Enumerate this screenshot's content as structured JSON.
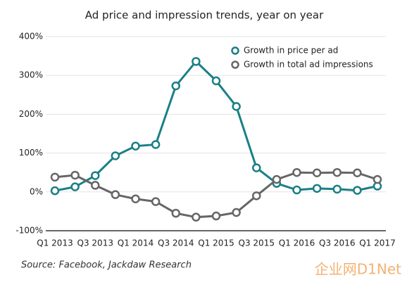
{
  "chart_data": {
    "type": "line",
    "title": "Ad price and impression trends, year on year",
    "categories": [
      "Q1 2013",
      null,
      "Q3 2013",
      null,
      "Q1 2014",
      null,
      "Q3 2014",
      null,
      "Q1 2015",
      null,
      "Q3 2015",
      null,
      "Q1 2016",
      null,
      "Q3 2016",
      null,
      "Q1 2017"
    ],
    "series": [
      {
        "name": "Growth in price per ad",
        "color": "#1a7f86",
        "values": [
          3,
          13,
          42,
          93,
          118,
          122,
          273,
          336,
          286,
          220,
          62,
          22,
          5,
          9,
          7,
          4,
          15
        ]
      },
      {
        "name": "Growth in total ad impressions",
        "color": "#666666",
        "values": [
          38,
          43,
          17,
          -7,
          -18,
          -25,
          -55,
          -65,
          -62,
          -53,
          -10,
          32,
          50,
          49,
          50,
          49,
          32
        ]
      }
    ],
    "ylim": [
      -100,
      400
    ],
    "yticks": [
      {
        "value": -100,
        "label": "-100%"
      },
      {
        "value": 0,
        "label": "0%"
      },
      {
        "value": 100,
        "label": "100%"
      },
      {
        "value": 200,
        "label": "200%"
      },
      {
        "value": 300,
        "label": "300%"
      },
      {
        "value": 400,
        "label": "400%"
      }
    ],
    "grid": true,
    "legend": "upper right",
    "source": "Source: Facebook, Jackdaw Research",
    "watermark": "企业网D1Net"
  }
}
